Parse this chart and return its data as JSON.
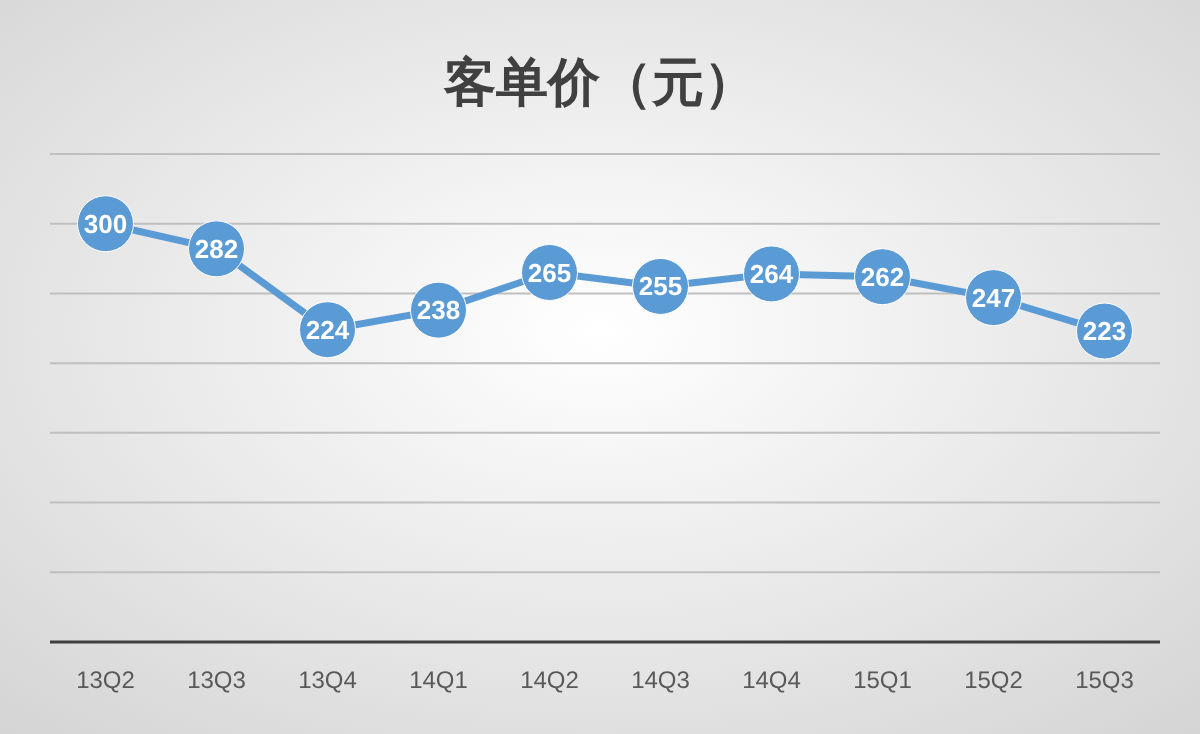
{
  "chart_data": {
    "type": "line",
    "title": "客单价（元）",
    "categories": [
      "13Q2",
      "13Q3",
      "13Q4",
      "14Q1",
      "14Q2",
      "14Q3",
      "14Q4",
      "15Q1",
      "15Q2",
      "15Q3"
    ],
    "series": [
      {
        "color": "#5b9bd5",
        "values": [
          300,
          282,
          224,
          238,
          265,
          255,
          264,
          262,
          247,
          223
        ]
      }
    ],
    "ylim": [
      0,
      350
    ],
    "yticks": [
      {
        "value": 0,
        "label": null
      },
      {
        "value": 50,
        "label": null
      },
      {
        "value": 100,
        "label": null
      },
      {
        "value": 150,
        "label": null
      },
      {
        "value": 200,
        "label": null
      },
      {
        "value": 250,
        "label": null
      },
      {
        "value": 300,
        "label": null
      },
      {
        "value": 350,
        "label": null
      }
    ],
    "tick_labels": "x",
    "grid": "y",
    "marker": "circle",
    "line_style": "solid",
    "data_labels": true
  }
}
